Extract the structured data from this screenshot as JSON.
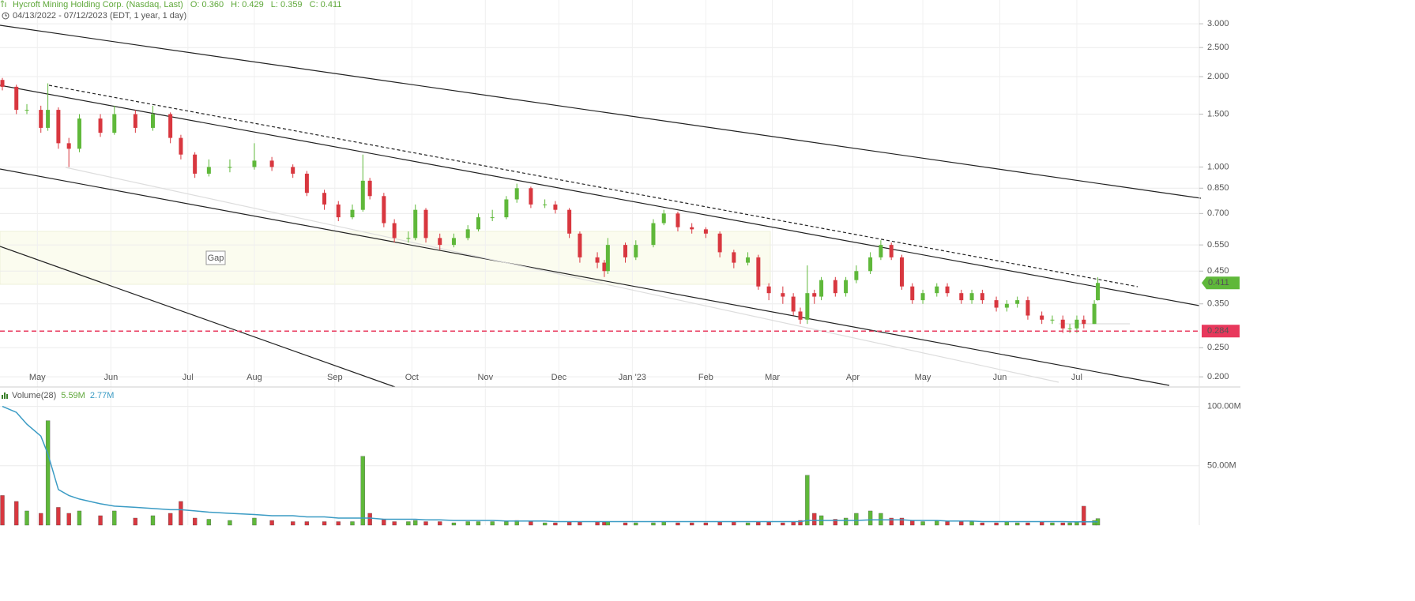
{
  "chart_data": [
    {
      "type": "candlestick",
      "title": "Hycroft Mining Holding Corp. (Nasdaq, Last)",
      "quote": [
        "O: 0.360",
        "H: 0.429",
        "L: 0.359",
        "C: 0.411"
      ],
      "subtitle": "04/13/2022 - 07/12/2023   (EDT, 1 year, 1 day)",
      "annotation": "Gap",
      "log_scale": true,
      "grid": true,
      "up_color": "#5fb83a",
      "down_color": "#d8373f",
      "hline": 0.284,
      "hline_color": "#e8385c",
      "xlim": [
        -0.68,
        342
      ],
      "ylim": [
        0.185,
        3.6
      ],
      "yticks": [
        {
          "value": 3,
          "label": "3.000"
        },
        {
          "value": 2.5,
          "label": "2.500"
        },
        {
          "value": 2,
          "label": "2.000"
        },
        {
          "value": 1.5,
          "label": "1.500"
        },
        {
          "value": 1,
          "label": "1.000"
        },
        {
          "value": 0.85,
          "label": "0.850"
        },
        {
          "value": 0.7,
          "label": "0.700"
        },
        {
          "value": 0.55,
          "label": "0.550"
        },
        {
          "value": 0.45,
          "label": "0.450"
        },
        {
          "value": 0.35,
          "label": "0.350"
        },
        {
          "value": 0.25,
          "label": "0.250"
        },
        {
          "value": 0.2,
          "label": "0.200"
        }
      ],
      "xticks": [
        {
          "value": 10,
          "label": "May"
        },
        {
          "value": 31,
          "label": "Jun"
        },
        {
          "value": 53,
          "label": "Jul"
        },
        {
          "value": 72,
          "label": "Aug"
        },
        {
          "value": 95,
          "label": "Sep"
        },
        {
          "value": 117,
          "label": "Oct"
        },
        {
          "value": 138,
          "label": "Nov"
        },
        {
          "value": 159,
          "label": "Dec"
        },
        {
          "value": 180,
          "label": "Jan '23"
        },
        {
          "value": 201,
          "label": "Feb"
        },
        {
          "value": 220,
          "label": "Mar"
        },
        {
          "value": 243,
          "label": "Apr"
        },
        {
          "value": 263,
          "label": "May"
        },
        {
          "value": 285,
          "label": "Jun"
        },
        {
          "value": 307,
          "label": "Jul"
        }
      ],
      "x": [
        0,
        4,
        7,
        11,
        13,
        16,
        19,
        22,
        28,
        32,
        38,
        43,
        48,
        51,
        55,
        59,
        65,
        72,
        77,
        83,
        87,
        92,
        96,
        100,
        103,
        105,
        109,
        112,
        116,
        118,
        121,
        125,
        129,
        133,
        136,
        140,
        144,
        147,
        151,
        155,
        158,
        162,
        165,
        170,
        172,
        173,
        178,
        181,
        186,
        189,
        193,
        197,
        201,
        205,
        209,
        213,
        216,
        219,
        223,
        226,
        228,
        230,
        232,
        234,
        238,
        241,
        244,
        248,
        251,
        254,
        257,
        260,
        263,
        267,
        270,
        274,
        277,
        280,
        284,
        287,
        290,
        293,
        297,
        300,
        303,
        305,
        307,
        309,
        312,
        313
      ],
      "open": [
        1.95,
        1.85,
        1.55,
        1.55,
        1.35,
        1.55,
        1.2,
        1.15,
        1.45,
        1.3,
        1.5,
        1.35,
        1.5,
        1.25,
        1.1,
        0.95,
        1.0,
        1.0,
        1.05,
        1.0,
        0.95,
        0.82,
        0.75,
        0.68,
        0.72,
        0.9,
        0.8,
        0.65,
        0.58,
        0.58,
        0.72,
        0.58,
        0.55,
        0.58,
        0.62,
        0.68,
        0.68,
        0.78,
        0.85,
        0.75,
        0.75,
        0.72,
        0.6,
        0.5,
        0.48,
        0.45,
        0.55,
        0.5,
        0.55,
        0.65,
        0.7,
        0.63,
        0.62,
        0.6,
        0.52,
        0.48,
        0.5,
        0.4,
        0.38,
        0.37,
        0.33,
        0.31,
        0.38,
        0.37,
        0.42,
        0.38,
        0.42,
        0.45,
        0.5,
        0.55,
        0.5,
        0.4,
        0.36,
        0.38,
        0.4,
        0.38,
        0.36,
        0.38,
        0.36,
        0.34,
        0.35,
        0.36,
        0.32,
        0.31,
        0.31,
        0.29,
        0.29,
        0.31,
        0.3,
        0.36
      ],
      "high": [
        1.98,
        1.88,
        1.62,
        1.6,
        1.9,
        1.58,
        1.25,
        1.5,
        1.5,
        1.6,
        1.55,
        1.6,
        1.52,
        1.28,
        1.12,
        1.06,
        1.06,
        1.2,
        1.08,
        1.02,
        0.97,
        0.84,
        0.77,
        0.75,
        1.1,
        0.92,
        0.82,
        0.67,
        0.61,
        0.75,
        0.73,
        0.6,
        0.6,
        0.64,
        0.7,
        0.72,
        0.8,
        0.88,
        0.86,
        0.78,
        0.77,
        0.73,
        0.61,
        0.52,
        0.49,
        0.58,
        0.56,
        0.57,
        0.67,
        0.72,
        0.71,
        0.65,
        0.63,
        0.61,
        0.53,
        0.52,
        0.51,
        0.41,
        0.4,
        0.38,
        0.34,
        0.47,
        0.39,
        0.43,
        0.43,
        0.43,
        0.47,
        0.52,
        0.57,
        0.56,
        0.51,
        0.41,
        0.39,
        0.41,
        0.41,
        0.39,
        0.39,
        0.39,
        0.37,
        0.36,
        0.37,
        0.37,
        0.33,
        0.32,
        0.32,
        0.3,
        0.32,
        0.32,
        0.36,
        0.429
      ],
      "low": [
        1.8,
        1.5,
        1.5,
        1.3,
        1.32,
        1.15,
        1.0,
        1.12,
        1.26,
        1.28,
        1.3,
        1.32,
        1.2,
        1.06,
        0.92,
        0.93,
        0.96,
        0.98,
        0.97,
        0.92,
        0.8,
        0.72,
        0.66,
        0.67,
        0.71,
        0.78,
        0.63,
        0.56,
        0.56,
        0.57,
        0.56,
        0.53,
        0.54,
        0.57,
        0.61,
        0.66,
        0.67,
        0.76,
        0.73,
        0.73,
        0.7,
        0.58,
        0.48,
        0.46,
        0.43,
        0.44,
        0.48,
        0.49,
        0.54,
        0.64,
        0.61,
        0.6,
        0.58,
        0.5,
        0.46,
        0.47,
        0.39,
        0.36,
        0.35,
        0.32,
        0.3,
        0.3,
        0.35,
        0.36,
        0.37,
        0.37,
        0.41,
        0.44,
        0.49,
        0.49,
        0.39,
        0.35,
        0.35,
        0.37,
        0.37,
        0.35,
        0.35,
        0.35,
        0.33,
        0.33,
        0.34,
        0.31,
        0.3,
        0.3,
        0.28,
        0.28,
        0.28,
        0.29,
        0.3,
        0.359
      ],
      "close": [
        1.85,
        1.55,
        1.55,
        1.35,
        1.55,
        1.2,
        1.15,
        1.45,
        1.3,
        1.5,
        1.35,
        1.5,
        1.25,
        1.1,
        0.95,
        1.0,
        1.0,
        1.05,
        1.0,
        0.95,
        0.82,
        0.75,
        0.68,
        0.72,
        0.9,
        0.8,
        0.65,
        0.58,
        0.58,
        0.72,
        0.58,
        0.55,
        0.58,
        0.62,
        0.68,
        0.68,
        0.78,
        0.85,
        0.75,
        0.75,
        0.72,
        0.6,
        0.5,
        0.48,
        0.45,
        0.55,
        0.5,
        0.55,
        0.65,
        0.7,
        0.63,
        0.62,
        0.6,
        0.52,
        0.48,
        0.5,
        0.4,
        0.38,
        0.37,
        0.33,
        0.31,
        0.38,
        0.37,
        0.42,
        0.38,
        0.42,
        0.45,
        0.5,
        0.55,
        0.5,
        0.4,
        0.36,
        0.38,
        0.4,
        0.38,
        0.36,
        0.38,
        0.36,
        0.34,
        0.35,
        0.36,
        0.32,
        0.31,
        0.31,
        0.29,
        0.29,
        0.31,
        0.3,
        0.35,
        0.411
      ]
    },
    {
      "type": "bar",
      "title": "Volume(28)",
      "last_label": "5.59M",
      "ma_label": "2.77M",
      "ma_color": "#3a9bc4",
      "ylim": [
        0,
        115
      ],
      "yticks": [
        {
          "value": 100,
          "label": "100.00M"
        },
        {
          "value": 50,
          "label": "50.00M"
        }
      ],
      "values": [
        25,
        20,
        12,
        10,
        88,
        15,
        10,
        12,
        8,
        12,
        6,
        8,
        10,
        20,
        6,
        5,
        4,
        6,
        4,
        3,
        3,
        3,
        3,
        3,
        58,
        10,
        5,
        3,
        3,
        4,
        3,
        3,
        2,
        3,
        3,
        3,
        3,
        4,
        3,
        2,
        2,
        3,
        3,
        3,
        3,
        3,
        2,
        2,
        2,
        3,
        2,
        2,
        2,
        3,
        3,
        2,
        3,
        3,
        2,
        3,
        4,
        42,
        10,
        8,
        5,
        6,
        10,
        12,
        10,
        6,
        6,
        4,
        3,
        4,
        3,
        3,
        3,
        2,
        2,
        3,
        2,
        2,
        3,
        2,
        2,
        2,
        3,
        16,
        4,
        5.59
      ],
      "ma_values": [
        100,
        95,
        85,
        75,
        60,
        30,
        25,
        22,
        18,
        16,
        15,
        14,
        13,
        13,
        12,
        11,
        10,
        9,
        8,
        8,
        7,
        7,
        6,
        6,
        6,
        6,
        5,
        5,
        5,
        5,
        4.5,
        4.5,
        4,
        4,
        4,
        4,
        3.5,
        3.5,
        3.5,
        3.5,
        3,
        3,
        3,
        3,
        3,
        3,
        3,
        3,
        3,
        3,
        3,
        3,
        3,
        3,
        3,
        3,
        3,
        3,
        3,
        3,
        3,
        4,
        4,
        4,
        4,
        4,
        4,
        4.5,
        4.5,
        4.5,
        4.5,
        4,
        4,
        4,
        3.5,
        3.5,
        3.5,
        3,
        3,
        3,
        3,
        3,
        3,
        3,
        3,
        2.8,
        2.8,
        2.8,
        2.8,
        2.77
      ]
    }
  ]
}
